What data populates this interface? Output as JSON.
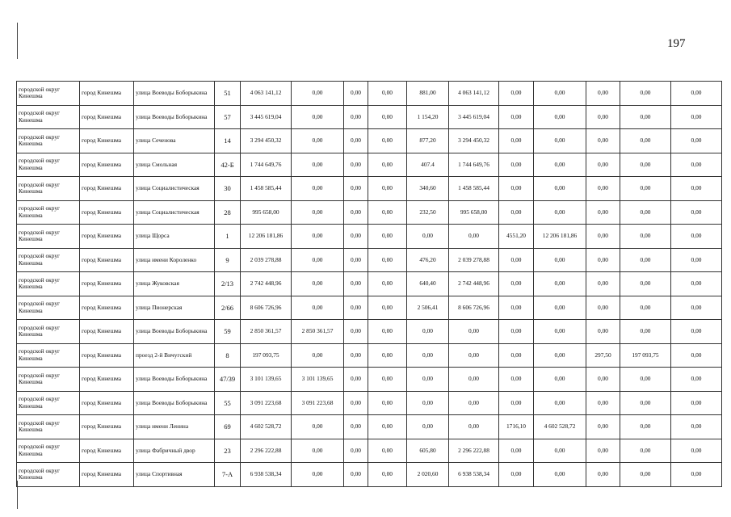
{
  "page_number": "197",
  "rows": [
    [
      "городской округ Кинешма",
      "город Кинешма",
      "улица Воеводы Боборыкина",
      "51",
      "4 063 141,12",
      "0,00",
      "0,00",
      "0,00",
      "881,00",
      "4 063 141,12",
      "0,00",
      "0,00",
      "0,00",
      "0,00",
      "0,00"
    ],
    [
      "городской округ Кинешма",
      "город Кинешма",
      "улица Воеводы Боборыкина",
      "57",
      "3 445 619,04",
      "0,00",
      "0,00",
      "0,00",
      "1 154,20",
      "3 445 619,04",
      "0,00",
      "0,00",
      "0,00",
      "0,00",
      "0,00"
    ],
    [
      "городской округ Кинешма",
      "город Кинешма",
      "улица Сеченова",
      "14",
      "3 294 450,32",
      "0,00",
      "0,00",
      "0,00",
      "877,20",
      "3 294 450,32",
      "0,00",
      "0,00",
      "0,00",
      "0,00",
      "0,00"
    ],
    [
      "городской округ Кинешма",
      "город Кинешма",
      "улица Смольная",
      "42-Б",
      "1 744 649,76",
      "0,00",
      "0,00",
      "0,00",
      "407.4",
      "1 744 649,76",
      "0,00",
      "0,00",
      "0,00",
      "0,00",
      "0,00"
    ],
    [
      "городской округ Кинешма",
      "город Кинешма",
      "улица Социалистическая",
      "30",
      "1 458 585,44",
      "0,00",
      "0,00",
      "0,00",
      "340,60",
      "1 458 585,44",
      "0,00",
      "0,00",
      "0,00",
      "0,00",
      "0,00"
    ],
    [
      "городской округ Кинешма",
      "город Кинешма",
      "улица Социалистическая",
      "28",
      "995 658,00",
      "0,00",
      "0,00",
      "0,00",
      "232,50",
      "995 658,00",
      "0,00",
      "0,00",
      "0,00",
      "0,00",
      "0,00"
    ],
    [
      "городской округ Кинешма",
      "город Кинешма",
      "улица Щорса",
      "1",
      "12 206 181,86",
      "0,00",
      "0,00",
      "0,00",
      "0,00",
      "0,00",
      "4551,20",
      "12 206 181,86",
      "0,00",
      "0,00",
      "0,00"
    ],
    [
      "городской округ Кинешма",
      "город Кинешма",
      "улица имени Короленко",
      "9",
      "2 039 278,88",
      "0,00",
      "0,00",
      "0,00",
      "476,20",
      "2 039 278,88",
      "0,00",
      "0,00",
      "0,00",
      "0,00",
      "0,00"
    ],
    [
      "городской округ Кинешма",
      "город Кинешма",
      "улица Жуковская",
      "2/13",
      "2 742 448,96",
      "0,00",
      "0,00",
      "0,00",
      "640,40",
      "2 742 448,96",
      "0,00",
      "0,00",
      "0,00",
      "0,00",
      "0,00"
    ],
    [
      "городской округ Кинешма",
      "город Кинешма",
      "улица Пионерская",
      "2/66",
      "8 606 726,96",
      "0,00",
      "0,00",
      "0,00",
      "2 506,41",
      "8 606 726,96",
      "0,00",
      "0,00",
      "0,00",
      "0,00",
      "0,00"
    ],
    [
      "городской округ Кинешма",
      "город Кинешма",
      "улица Воеводы Боборыкина",
      "59",
      "2 850 361,57",
      "2 850 361,57",
      "0,00",
      "0,00",
      "0,00",
      "0,00",
      "0,00",
      "0,00",
      "0,00",
      "0,00",
      "0,00"
    ],
    [
      "городской округ Кинешма",
      "город Кинешма",
      "проезд 2-й Вичугский",
      "8",
      "197 093,75",
      "0,00",
      "0,00",
      "0,00",
      "0,00",
      "0,00",
      "0,00",
      "0,00",
      "297,50",
      "197 093,75",
      "0,00"
    ],
    [
      "городской округ Кинешма",
      "город Кинешма",
      "улица Воеводы Боборыкина",
      "47/39",
      "3 101 139,65",
      "3 101 139,65",
      "0,00",
      "0,00",
      "0,00",
      "0,00",
      "0,00",
      "0,00",
      "0,00",
      "0,00",
      "0,00"
    ],
    [
      "городской округ Кинешма",
      "город Кинешма",
      "улица Воеводы Боборыкина",
      "55",
      "3 091 223,68",
      "3 091 223,68",
      "0,00",
      "0,00",
      "0,00",
      "0,00",
      "0,00",
      "0,00",
      "0,00",
      "0,00",
      "0,00"
    ],
    [
      "городской округ Кинешма",
      "город Кинешма",
      "улица имени Ленина",
      "69",
      "4 602 528,72",
      "0,00",
      "0,00",
      "0,00",
      "0,00",
      "0,00",
      "1716,10",
      "4 602 528,72",
      "0,00",
      "0,00",
      "0,00"
    ],
    [
      "городской округ Кинешма",
      "город Кинешма",
      "улица Фабричный двор",
      "23",
      "2 296 222,88",
      "0,00",
      "0,00",
      "0,00",
      "605,80",
      "2 296 222,88",
      "0,00",
      "0,00",
      "0,00",
      "0,00",
      "0,00"
    ],
    [
      "городской округ Кинешма",
      "город Кинешма",
      "улица Спортивная",
      "7-А",
      "6 938 538,34",
      "0,00",
      "0,00",
      "0,00",
      "2 020,60",
      "6 938 538,34",
      "0,00",
      "0,00",
      "0,00",
      "0,00",
      "0,00"
    ]
  ]
}
